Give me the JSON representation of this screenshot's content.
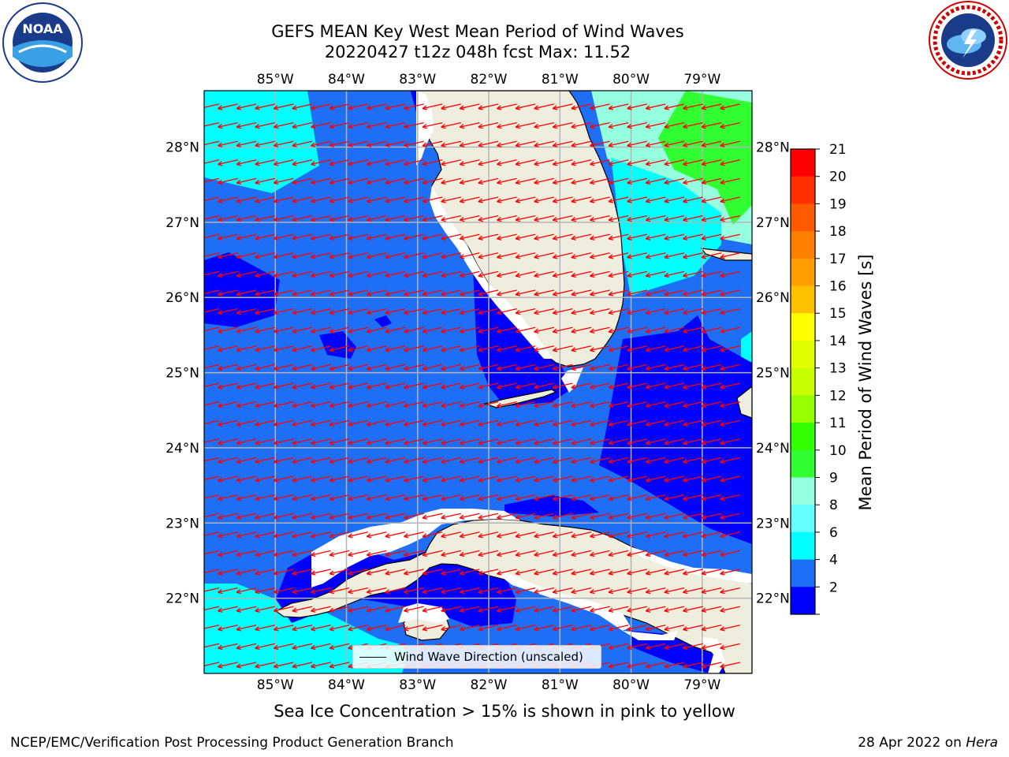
{
  "title_line1": "GEFS MEAN Key West Mean Period of Wind Waves",
  "title_line2": "20220427 t12z 048h fcst   Max: 11.52",
  "map": {
    "lon_labels": [
      "85°W",
      "84°W",
      "83°W",
      "82°W",
      "81°W",
      "80°W",
      "79°W"
    ],
    "lat_labels": [
      "28°N",
      "27°N",
      "26°N",
      "25°N",
      "24°N",
      "23°N",
      "22°N"
    ],
    "lon_range": [
      -86.0,
      -78.3
    ],
    "lat_range": [
      21.0,
      28.75
    ],
    "wave_direction_to_deg": 255,
    "legend_label": "Wind Wave Direction (unscaled)",
    "colors": {
      "ocean_shallow_period": "#0000ff",
      "ocean_default": "#1e6ff5",
      "land": "#efedde",
      "arrows": "#ff0000",
      "gridlines": "#b4b4b4"
    }
  },
  "colorbar": {
    "label": "Mean Period of Wind Waves [s]",
    "ticks": [
      "21",
      "20",
      "19",
      "18",
      "17",
      "16",
      "15",
      "14",
      "13",
      "12",
      "11",
      "10",
      "9",
      "8",
      "6",
      "4",
      "2"
    ],
    "colors": [
      "#ff0000",
      "#ff3000",
      "#ff5a00",
      "#ff8000",
      "#ffa000",
      "#ffc000",
      "#ffff00",
      "#e1ff00",
      "#c8ff00",
      "#96ff00",
      "#32ff00",
      "#32ff32",
      "#96ffe0",
      "#64ffff",
      "#00ffff",
      "#1e6ff5",
      "#0000ff"
    ]
  },
  "subtitle": "Sea Ice Concentration > 15% is shown in pink to yellow",
  "footer_left": "NCEP/EMC/Verification Post Processing Product Generation Branch",
  "footer_right_date": "28 Apr 2022 on",
  "footer_right_host": "Hera",
  "logos": {
    "left": "noaa-logo",
    "right": "nws-logo",
    "left_text": "NOAA"
  }
}
